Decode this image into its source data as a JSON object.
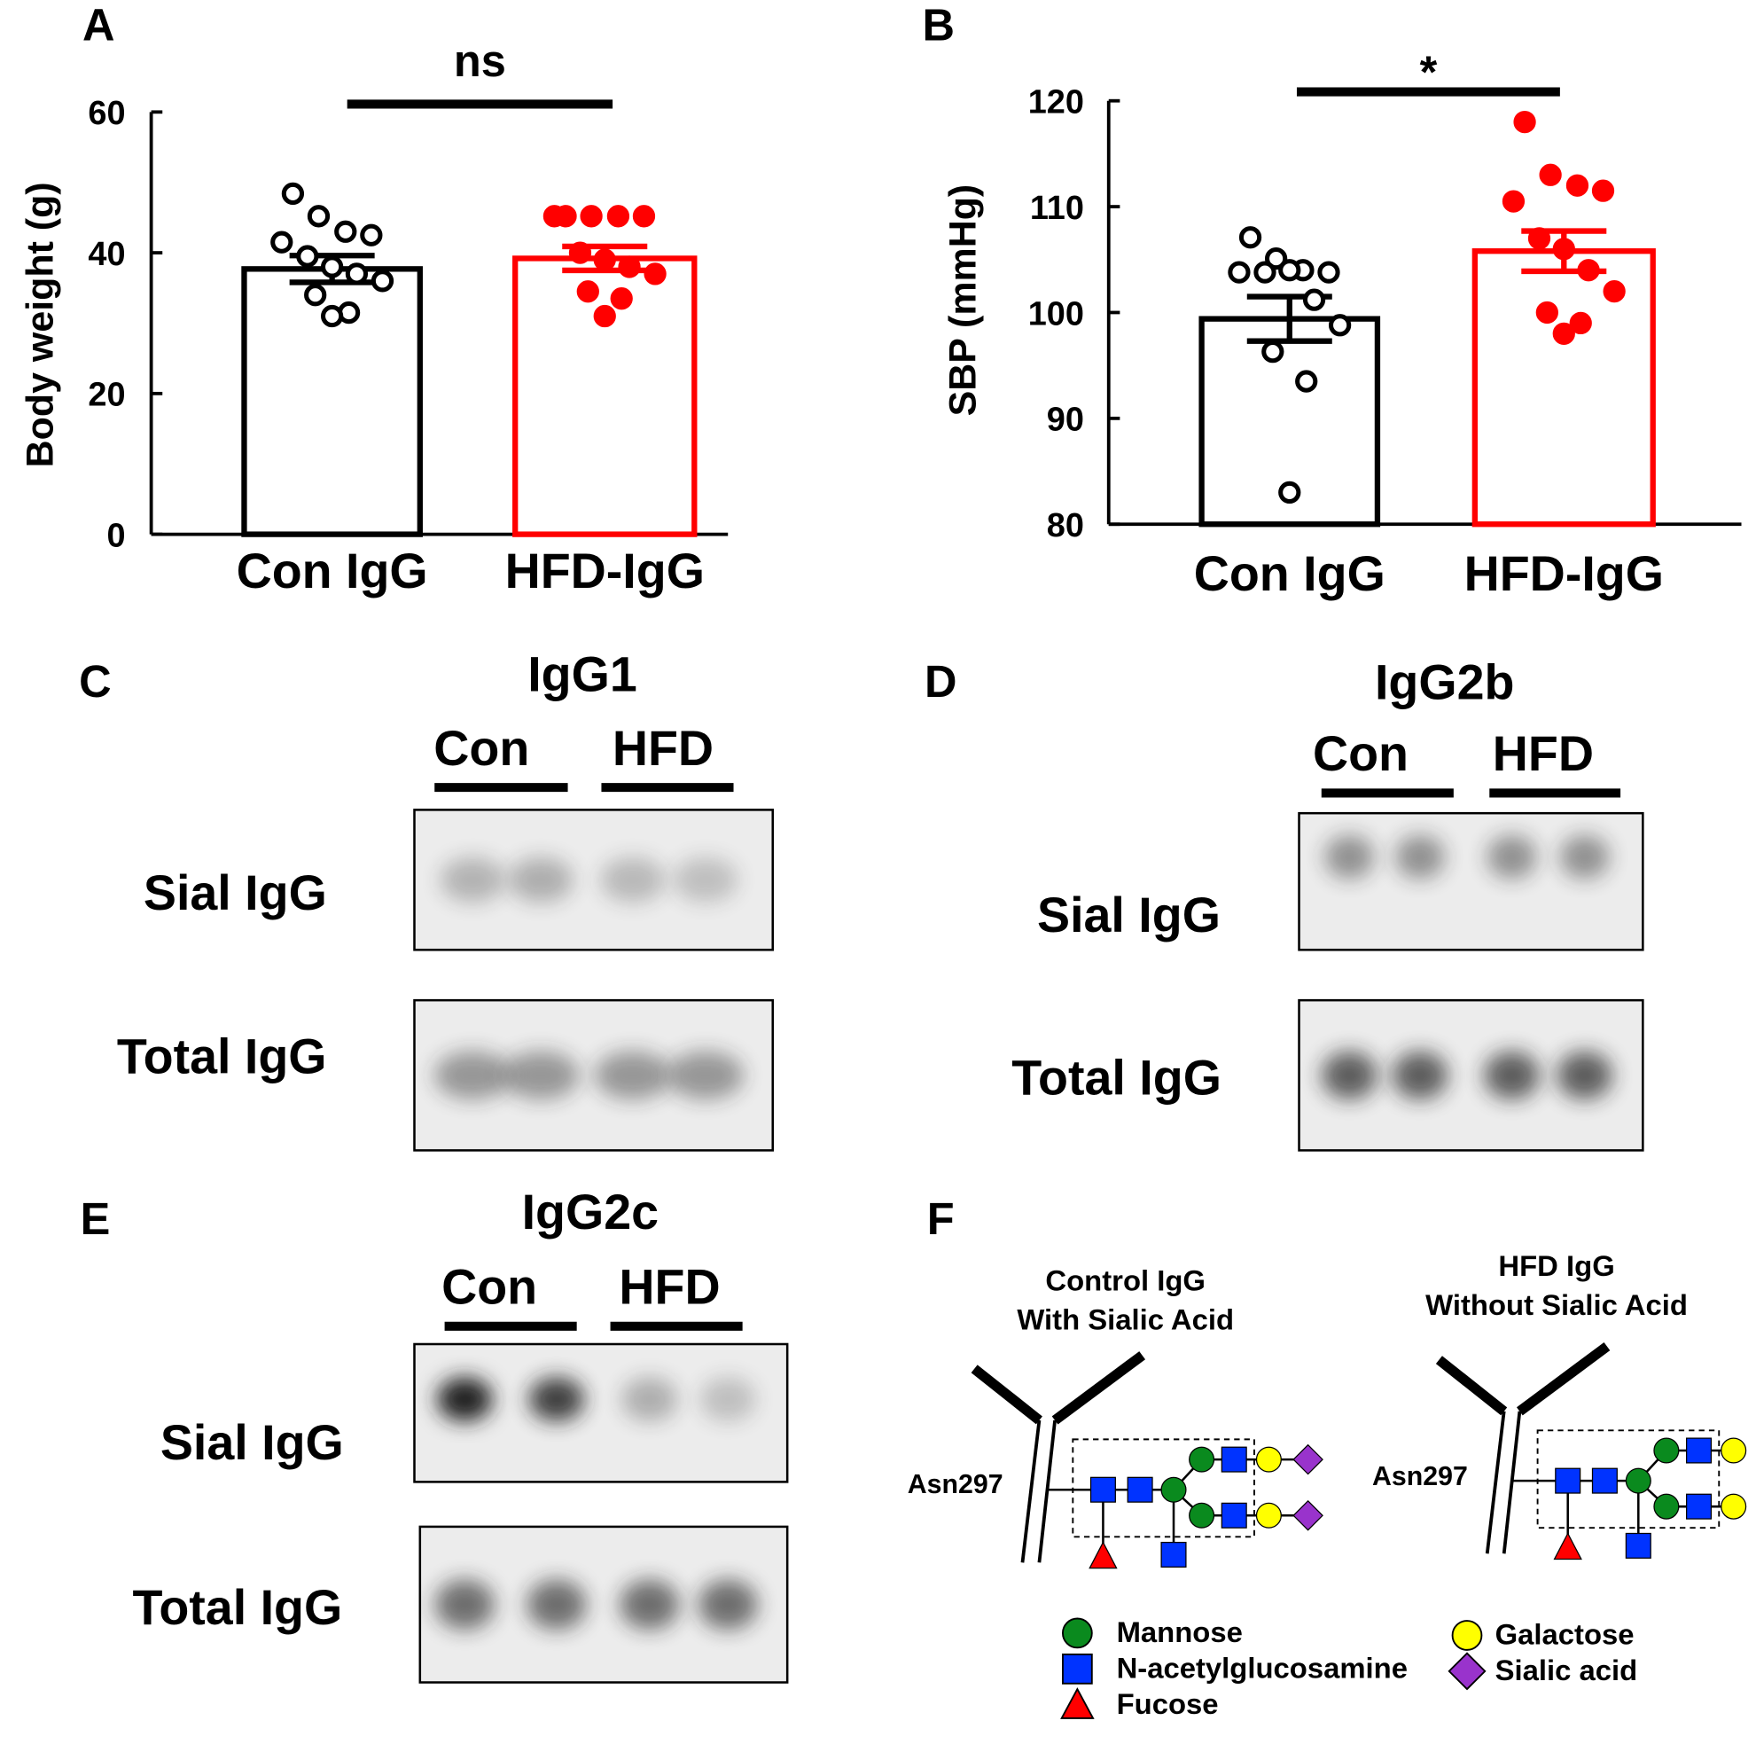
{
  "chart_data": [
    {
      "type": "bar",
      "panel": "A",
      "y_label": "Body weight (g)",
      "annotation": "ns",
      "categories": [
        "Con IgG",
        "HFD-IgG"
      ],
      "values": [
        37.7,
        39.2
      ],
      "errors": [
        1.9,
        1.7
      ],
      "colors": [
        "#000000",
        "#ff0000"
      ],
      "point_fills": [
        "#ffffff",
        "#ff0000"
      ],
      "points": [
        [
          48.4,
          45.2,
          43,
          42.5,
          41.5,
          39.5,
          38,
          37,
          36,
          34,
          31.5,
          31
        ],
        [
          45.2,
          45.2,
          45.2,
          45.2,
          45.2,
          40,
          39,
          38,
          37,
          34.5,
          33.5,
          31
        ]
      ],
      "ylim": [
        0,
        60
      ],
      "yticks": [
        0,
        20,
        40,
        60
      ]
    },
    {
      "type": "bar",
      "panel": "B",
      "y_label": "SBP (mmHg)",
      "annotation": "*",
      "categories": [
        "Con IgG",
        "HFD-IgG"
      ],
      "values": [
        99.4,
        105.8
      ],
      "errors": [
        2.1,
        1.9
      ],
      "colors": [
        "#000000",
        "#ff0000"
      ],
      "point_fills": [
        "#ffffff",
        "#ff0000"
      ],
      "points": [
        [
          107.1,
          105.1,
          104,
          103.8,
          103.8,
          103.8,
          104,
          101.2,
          98.8,
          96.3,
          93.5,
          83
        ],
        [
          118,
          113,
          112,
          111.5,
          110.5,
          107,
          106,
          104,
          102,
          100,
          99,
          98
        ]
      ],
      "ylim": [
        80,
        120
      ],
      "yticks": [
        80,
        90,
        100,
        110,
        120
      ]
    }
  ],
  "blots": [
    {
      "panel": "C",
      "title": "IgG1",
      "groups": [
        "Con",
        "HFD"
      ],
      "rows": [
        "Sial IgG",
        "Total IgG"
      ]
    },
    {
      "panel": "D",
      "title": "IgG2b",
      "groups": [
        "Con",
        "HFD"
      ],
      "rows": [
        "Sial IgG",
        "Total IgG"
      ]
    },
    {
      "panel": "E",
      "title": "IgG2c",
      "groups": [
        "Con",
        "HFD"
      ],
      "rows": [
        "Sial IgG",
        "Total IgG"
      ]
    }
  ],
  "diagram": {
    "panel": "F",
    "left": {
      "title": [
        "Control IgG",
        "With Sialic Acid"
      ],
      "site": "Asn297"
    },
    "right": {
      "title": [
        "HFD IgG",
        "Without Sialic Acid"
      ],
      "site": "Asn297"
    },
    "legend": [
      "Mannose",
      "N-acetylglucosamine",
      "Fucose",
      "Galactose",
      "Sialic acid"
    ]
  }
}
